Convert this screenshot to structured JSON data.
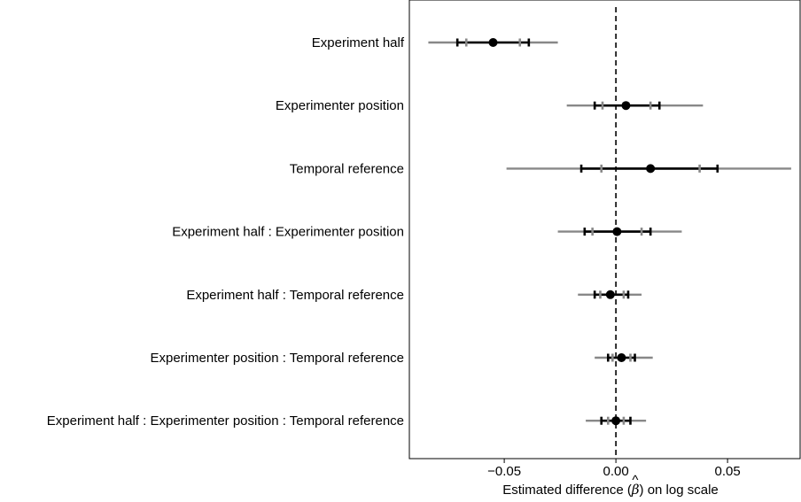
{
  "chart_data": {
    "type": "forest",
    "xlabel": {
      "pre": "Estimated difference (",
      "symbol": "β",
      "hat": "^",
      "post": ") on log scale"
    },
    "xlim": [
      -0.0925,
      0.0825
    ],
    "xticks": [
      {
        "value": -0.05,
        "label": "−0.05"
      },
      {
        "value": 0.0,
        "label": "0.00"
      },
      {
        "value": 0.05,
        "label": "0.05"
      }
    ],
    "reference_line": {
      "value": 0.0,
      "style": "dashed"
    },
    "colors": {
      "inner": "#000000",
      "outer": "#888888",
      "point": "#000000"
    },
    "terms": [
      {
        "label": "Experiment half",
        "estimate": -0.055,
        "inner": [
          -0.071,
          -0.039
        ],
        "outer": [
          -0.084,
          -0.026
        ],
        "outer_ticks": [
          -0.067,
          -0.043
        ]
      },
      {
        "label": "Experimenter position",
        "estimate": 0.0045,
        "inner": [
          -0.0095,
          0.0195
        ],
        "outer": [
          -0.022,
          0.039
        ],
        "outer_ticks": [
          -0.006,
          0.0155
        ]
      },
      {
        "label": "Temporal reference",
        "estimate": 0.0155,
        "inner": [
          -0.0155,
          0.0455
        ],
        "outer": [
          -0.049,
          0.0785
        ],
        "outer_ticks": [
          -0.0065,
          0.0375
        ]
      },
      {
        "label": "Experiment half : Experimenter position",
        "estimate": 0.0005,
        "inner": [
          -0.014,
          0.0155
        ],
        "outer": [
          -0.026,
          0.0295
        ],
        "outer_ticks": [
          -0.0105,
          0.0115
        ]
      },
      {
        "label": "Experiment half : Temporal reference",
        "estimate": -0.0025,
        "inner": [
          -0.0095,
          0.0055
        ],
        "outer": [
          -0.017,
          0.0115
        ],
        "outer_ticks": [
          -0.007,
          0.0035
        ]
      },
      {
        "label": "Experimenter position : Temporal reference",
        "estimate": 0.0025,
        "inner": [
          -0.0035,
          0.0085
        ],
        "outer": [
          -0.0095,
          0.0165
        ],
        "outer_ticks": [
          -0.0015,
          0.0065
        ]
      },
      {
        "label": "Experiment half : Experimenter position : Temporal reference",
        "estimate": 0.0,
        "inner": [
          -0.0065,
          0.0065
        ],
        "outer": [
          -0.0135,
          0.0135
        ],
        "outer_ticks": [
          -0.0035,
          0.0035
        ]
      }
    ]
  }
}
